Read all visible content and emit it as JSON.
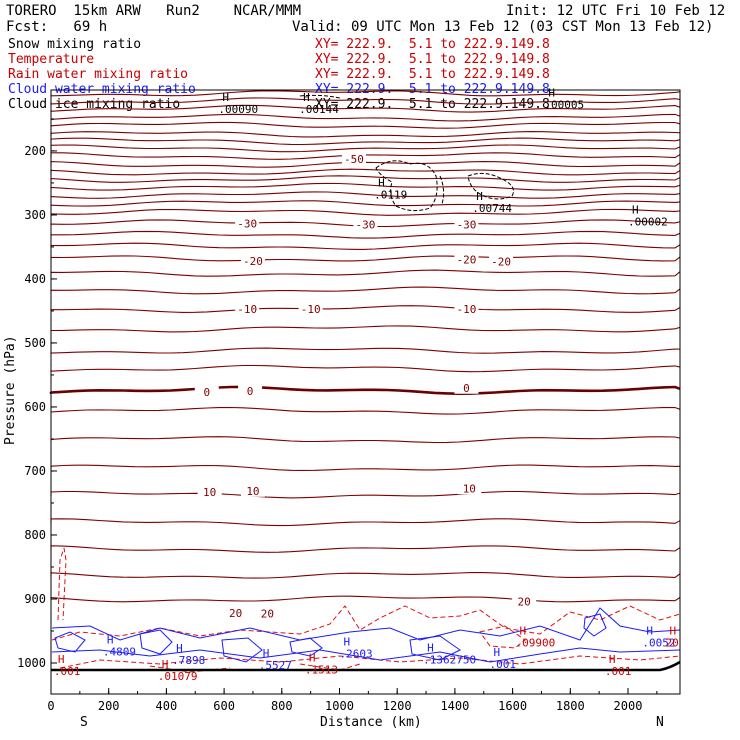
{
  "header": {
    "title_left": "TORERO  15km ARW   Run2    NCAR/MMM",
    "init": "Init: 12 UTC Fri 10 Feb 12",
    "fcst": "Fcst:   69 h",
    "valid": "Valid: 09 UTC Mon 13 Feb 12 (03 CST Mon 13 Feb 12)"
  },
  "legend": [
    {
      "name": "Snow mixing ratio",
      "xy": "XY= 222.9.  5.1 to 222.9.149.8",
      "color": "#000000"
    },
    {
      "name": "Temperature",
      "xy": "XY= 222.9.  5.1 to 222.9.149.8",
      "color": "#cc0000"
    },
    {
      "name": "Rain water mixing ratio",
      "xy": "XY= 222.9.  5.1 to 222.9.149.8",
      "color": "#cc0000"
    },
    {
      "name": "Cloud water mixing ratio",
      "xy": "XY= 222.9.  5.1 to 222.9.149.8",
      "color": "#1a1aff"
    },
    {
      "name": "Cloud ice mixing ratio",
      "xy": "XY= 222.9.  5.1 to 222.9.149.8",
      "color": "#000000"
    }
  ],
  "chart_data": {
    "type": "cross-section contour",
    "xlabel": "Distance (km)",
    "ylabel": "Pressure (hPa)",
    "xlim": [
      0,
      2180
    ],
    "ylim": [
      1010,
      100
    ],
    "x_ticks": [
      "0",
      "200",
      "400",
      "600",
      "800",
      "1000",
      "1200",
      "1400",
      "1600",
      "1800",
      "2000"
    ],
    "x_tick_values": [
      0,
      200,
      400,
      600,
      800,
      1000,
      1200,
      1400,
      1600,
      1800,
      2000
    ],
    "y_ticks": [
      "200",
      "300",
      "400",
      "500",
      "600",
      "700",
      "800",
      "900",
      "1000"
    ],
    "y_tick_values": [
      200,
      300,
      400,
      500,
      600,
      700,
      800,
      900,
      1000
    ],
    "left_end": "S",
    "right_end": "N",
    "colors": {
      "temperature": "#800000",
      "freezing": "#6b0000",
      "rain": "#e01010",
      "cloud_water": "#1a1aff",
      "ice": "#000000",
      "ground": "#000000"
    },
    "isotherm_pressures": [
      110,
      122,
      134,
      148,
      160,
      174,
      185,
      196,
      208,
      221,
      233,
      244,
      256,
      269,
      282,
      296,
      313,
      331,
      349,
      368,
      391,
      418,
      447,
      478,
      512,
      540,
      574,
      606,
      651,
      695,
      737,
      780,
      822,
      863,
      900
    ],
    "isotherm_labels": [
      {
        "text": "-50",
        "x": 1050,
        "p": 213
      },
      {
        "text": "-30",
        "x": 680,
        "p": 313
      },
      {
        "text": "-30",
        "x": 1090,
        "p": 315
      },
      {
        "text": "-30",
        "x": 1440,
        "p": 315
      },
      {
        "text": "-20",
        "x": 700,
        "p": 372
      },
      {
        "text": "-20",
        "x": 1440,
        "p": 370
      },
      {
        "text": "-20",
        "x": 1560,
        "p": 373
      },
      {
        "text": "-10",
        "x": 680,
        "p": 447
      },
      {
        "text": "-10",
        "x": 900,
        "p": 447
      },
      {
        "text": "-10",
        "x": 1440,
        "p": 447
      },
      {
        "text": "0",
        "x": 540,
        "p": 577
      },
      {
        "text": "0",
        "x": 690,
        "p": 575
      },
      {
        "text": "0",
        "x": 1440,
        "p": 570
      },
      {
        "text": "10",
        "x": 550,
        "p": 733
      },
      {
        "text": "10",
        "x": 700,
        "p": 731
      },
      {
        "text": "10",
        "x": 1450,
        "p": 727
      },
      {
        "text": "20",
        "x": 640,
        "p": 922
      },
      {
        "text": "20",
        "x": 750,
        "p": 923
      },
      {
        "text": "20",
        "x": 1640,
        "p": 904
      }
    ],
    "maxima_labels": [
      {
        "text": ".00090",
        "x": 580,
        "p": 128,
        "color": "#000000"
      },
      {
        "text": ".00144",
        "x": 860,
        "p": 128,
        "color": "#000000"
      },
      {
        "text": ".00005",
        "x": 1710,
        "p": 121,
        "color": "#000000"
      },
      {
        "text": ".0119",
        "x": 1120,
        "p": 262,
        "color": "#000000"
      },
      {
        "text": ".00744",
        "x": 1460,
        "p": 283,
        "color": "#000000"
      },
      {
        "text": ".00002",
        "x": 2000,
        "p": 304,
        "color": "#000000"
      },
      {
        "text": ".4809",
        "x": 180,
        "p": 976,
        "color": "#1a1aff"
      },
      {
        "text": ".7898",
        "x": 420,
        "p": 989,
        "color": "#1a1aff"
      },
      {
        "text": ".5527",
        "x": 720,
        "p": 997,
        "color": "#1a1aff"
      },
      {
        "text": ".2603",
        "x": 1000,
        "p": 979,
        "color": "#1a1aff"
      },
      {
        "text": ".1362750",
        "x": 1290,
        "p": 988,
        "color": "#1a1aff"
      },
      {
        "text": ".001",
        "x": 1520,
        "p": 995,
        "color": "#1a1aff"
      },
      {
        "text": ".0052",
        "x": 2050,
        "p": 962,
        "color": "#1a1aff"
      },
      {
        "text": ".001",
        "x": 10,
        "p": 1006,
        "color": "#cc0000"
      },
      {
        "text": ".01079",
        "x": 370,
        "p": 1014,
        "color": "#cc0000"
      },
      {
        "text": ".1513",
        "x": 880,
        "p": 1004,
        "color": "#cc0000"
      },
      {
        "text": ".09900",
        "x": 1610,
        "p": 962,
        "color": "#cc0000"
      },
      {
        "text": ".001",
        "x": 1920,
        "p": 1006,
        "color": "#cc0000"
      },
      {
        "text": "20",
        "x": 2130,
        "p": 962,
        "color": "#cc0000"
      }
    ]
  }
}
